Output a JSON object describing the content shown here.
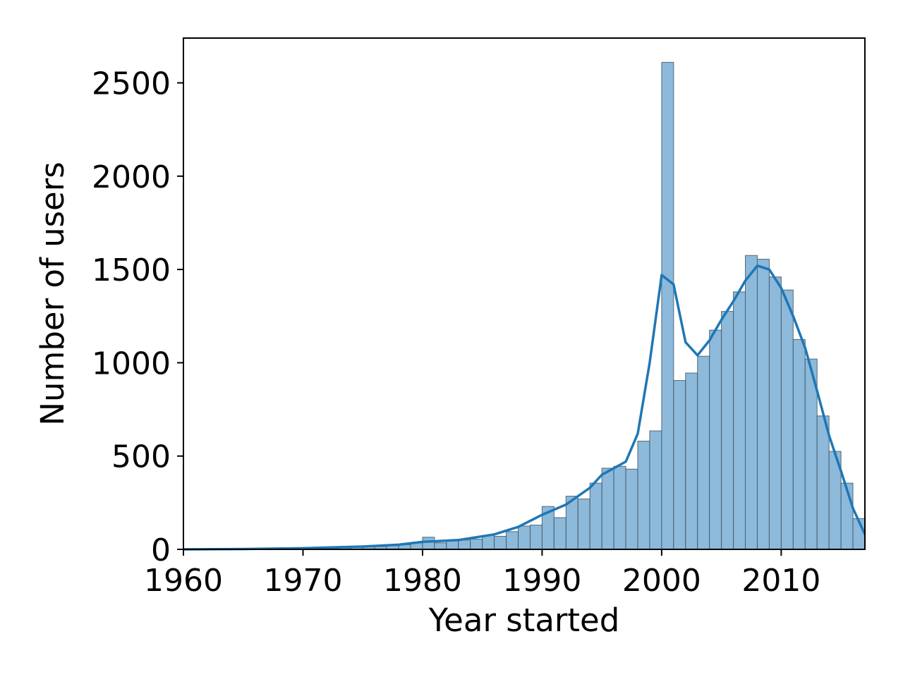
{
  "chart_data": {
    "type": "bar",
    "subtype": "histogram-with-kde",
    "xlabel": "Year started",
    "ylabel": "Number of users",
    "xlim": [
      1960,
      2017
    ],
    "ylim": [
      0,
      2740
    ],
    "grid": false,
    "legend": "none",
    "bin_width": 1,
    "x_ticks": [
      "1960",
      "1970",
      "1980",
      "1990",
      "2000",
      "2010"
    ],
    "y_ticks": [
      "0",
      "500",
      "1000",
      "1500",
      "2000",
      "2500"
    ],
    "x_tick_values": [
      1960,
      1970,
      1980,
      1990,
      2000,
      2010
    ],
    "y_tick_values": [
      0,
      500,
      1000,
      1500,
      2000,
      2500
    ],
    "bars": [
      {
        "x": 1960,
        "value": 0
      },
      {
        "x": 1961,
        "value": 0
      },
      {
        "x": 1962,
        "value": 0
      },
      {
        "x": 1963,
        "value": 0
      },
      {
        "x": 1964,
        "value": 1
      },
      {
        "x": 1965,
        "value": 1
      },
      {
        "x": 1966,
        "value": 2
      },
      {
        "x": 1967,
        "value": 2
      },
      {
        "x": 1968,
        "value": 3
      },
      {
        "x": 1969,
        "value": 3
      },
      {
        "x": 1970,
        "value": 8
      },
      {
        "x": 1971,
        "value": 4
      },
      {
        "x": 1972,
        "value": 6
      },
      {
        "x": 1973,
        "value": 8
      },
      {
        "x": 1974,
        "value": 12
      },
      {
        "x": 1975,
        "value": 13
      },
      {
        "x": 1976,
        "value": 15
      },
      {
        "x": 1977,
        "value": 20
      },
      {
        "x": 1978,
        "value": 25
      },
      {
        "x": 1979,
        "value": 35
      },
      {
        "x": 1980,
        "value": 65
      },
      {
        "x": 1981,
        "value": 35
      },
      {
        "x": 1982,
        "value": 45
      },
      {
        "x": 1983,
        "value": 50
      },
      {
        "x": 1984,
        "value": 55
      },
      {
        "x": 1985,
        "value": 75
      },
      {
        "x": 1986,
        "value": 70
      },
      {
        "x": 1987,
        "value": 95
      },
      {
        "x": 1988,
        "value": 125
      },
      {
        "x": 1989,
        "value": 130
      },
      {
        "x": 1990,
        "value": 230
      },
      {
        "x": 1991,
        "value": 170
      },
      {
        "x": 1992,
        "value": 285
      },
      {
        "x": 1993,
        "value": 270
      },
      {
        "x": 1994,
        "value": 355
      },
      {
        "x": 1995,
        "value": 435
      },
      {
        "x": 1996,
        "value": 445
      },
      {
        "x": 1997,
        "value": 430
      },
      {
        "x": 1998,
        "value": 580
      },
      {
        "x": 1999,
        "value": 635
      },
      {
        "x": 2000,
        "value": 2610
      },
      {
        "x": 2001,
        "value": 905
      },
      {
        "x": 2002,
        "value": 945
      },
      {
        "x": 2003,
        "value": 1035
      },
      {
        "x": 2004,
        "value": 1175
      },
      {
        "x": 2005,
        "value": 1275
      },
      {
        "x": 2006,
        "value": 1380
      },
      {
        "x": 2007,
        "value": 1575
      },
      {
        "x": 2008,
        "value": 1555
      },
      {
        "x": 2009,
        "value": 1460
      },
      {
        "x": 2010,
        "value": 1390
      },
      {
        "x": 2011,
        "value": 1125
      },
      {
        "x": 2012,
        "value": 1020
      },
      {
        "x": 2013,
        "value": 715
      },
      {
        "x": 2014,
        "value": 525
      },
      {
        "x": 2015,
        "value": 355
      },
      {
        "x": 2016,
        "value": 165
      },
      {
        "x": 2017,
        "value": 30
      }
    ],
    "kde": {
      "x": [
        1960,
        1965,
        1970,
        1975,
        1978,
        1980,
        1983,
        1986,
        1988,
        1990,
        1992,
        1994,
        1995,
        1997,
        1998,
        1999,
        2000,
        2001,
        2002,
        2003,
        2004,
        2005,
        2006,
        2007,
        2008,
        2009,
        2010,
        2011,
        2012,
        2013,
        2014,
        2015,
        2016,
        2017
      ],
      "y": [
        0,
        2,
        6,
        15,
        25,
        40,
        50,
        80,
        120,
        185,
        240,
        330,
        400,
        470,
        620,
        1000,
        1470,
        1420,
        1110,
        1040,
        1120,
        1230,
        1330,
        1440,
        1520,
        1500,
        1400,
        1250,
        1080,
        850,
        610,
        420,
        220,
        80
      ]
    },
    "colors": {
      "bar_fill": "#8db9da",
      "bar_edge": "#3e5566",
      "kde_line": "#1f77b4"
    }
  }
}
